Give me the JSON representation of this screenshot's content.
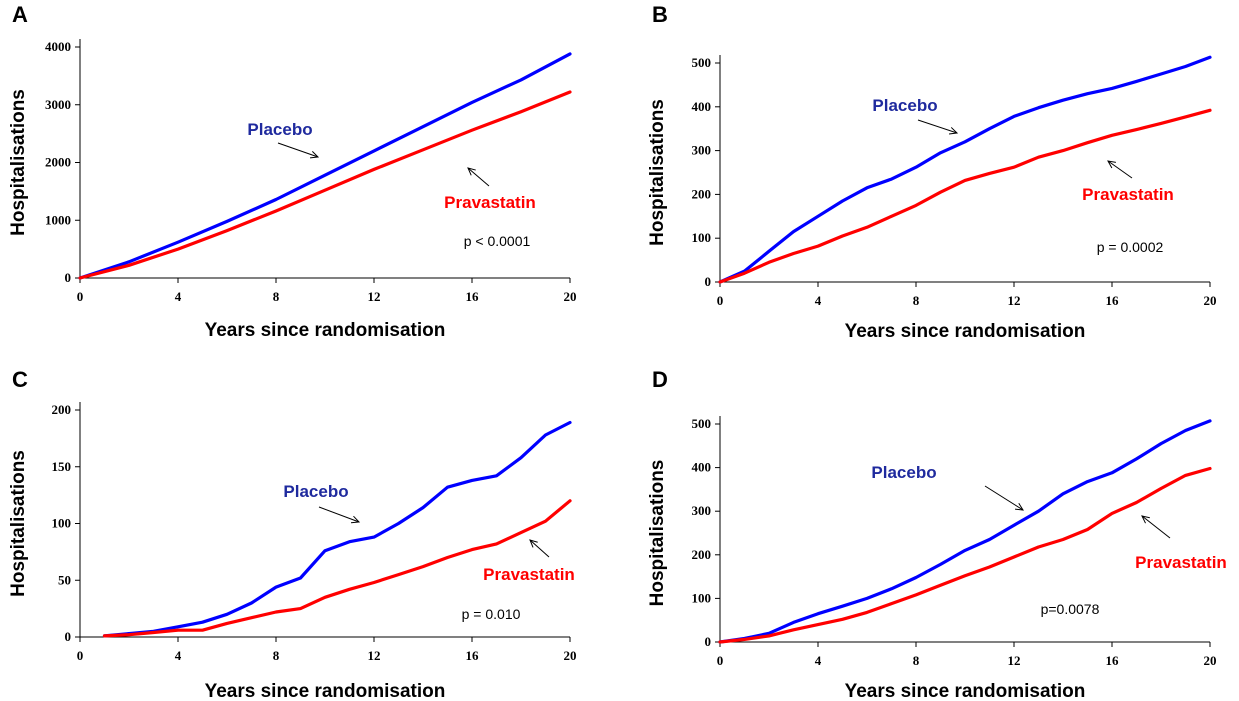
{
  "colors": {
    "placebo": "#0000ff",
    "pravastatin": "#ff0000",
    "placebo_label": "#1f2a9e",
    "pravastatin_label": "#ff0000"
  },
  "chart_data": [
    {
      "panel": "A",
      "type": "line",
      "xlabel": "Years since randomisation",
      "ylabel": "Hospitalisations",
      "xlim": [
        0,
        20
      ],
      "ylim": [
        0,
        4000
      ],
      "xticks": [
        0,
        4,
        8,
        12,
        16,
        20
      ],
      "yticks": [
        0,
        1000,
        2000,
        3000,
        4000
      ],
      "annotation": "p < 0.0001",
      "series": [
        {
          "name": "Placebo",
          "x": [
            0,
            2,
            4,
            6,
            8,
            10,
            12,
            14,
            16,
            18,
            20
          ],
          "y": [
            0,
            280,
            620,
            980,
            1360,
            1780,
            2200,
            2620,
            3040,
            3430,
            3880
          ]
        },
        {
          "name": "Pravastatin",
          "x": [
            0,
            2,
            4,
            6,
            8,
            10,
            12,
            14,
            16,
            18,
            20
          ],
          "y": [
            0,
            220,
            500,
            820,
            1160,
            1520,
            1880,
            2220,
            2560,
            2880,
            3220
          ]
        }
      ]
    },
    {
      "panel": "B",
      "type": "line",
      "xlabel": "Years since randomisation",
      "ylabel": "Hospitalisations",
      "xlim": [
        0,
        20
      ],
      "ylim": [
        0,
        500
      ],
      "xticks": [
        0,
        4,
        8,
        12,
        16,
        20
      ],
      "yticks": [
        0,
        100,
        200,
        300,
        400,
        500
      ],
      "annotation": "p = 0.0002",
      "series": [
        {
          "name": "Placebo",
          "x": [
            0,
            1,
            2,
            3,
            4,
            5,
            6,
            7,
            8,
            9,
            10,
            11,
            12,
            13,
            14,
            15,
            16,
            17,
            18,
            19,
            20
          ],
          "y": [
            0,
            25,
            70,
            115,
            150,
            185,
            215,
            235,
            262,
            295,
            320,
            350,
            378,
            398,
            415,
            430,
            442,
            458,
            475,
            492,
            513
          ]
        },
        {
          "name": "Pravastatin",
          "x": [
            0,
            1,
            2,
            3,
            4,
            5,
            6,
            7,
            8,
            9,
            10,
            11,
            12,
            13,
            14,
            15,
            16,
            17,
            18,
            19,
            20
          ],
          "y": [
            0,
            20,
            45,
            65,
            82,
            105,
            125,
            150,
            175,
            205,
            232,
            248,
            262,
            285,
            300,
            318,
            335,
            348,
            362,
            377,
            392
          ]
        }
      ]
    },
    {
      "panel": "C",
      "type": "line",
      "xlabel": "Years since randomisation",
      "ylabel": "Hospitalisations",
      "xlim": [
        0,
        20
      ],
      "ylim": [
        0,
        200
      ],
      "xticks": [
        0,
        4,
        8,
        12,
        16,
        20
      ],
      "yticks": [
        0,
        50,
        100,
        150,
        200
      ],
      "annotation": "p = 0.010",
      "series": [
        {
          "name": "Placebo",
          "x": [
            1,
            2,
            3,
            4,
            5,
            6,
            7,
            8,
            9,
            10,
            11,
            12,
            13,
            14,
            15,
            16,
            17,
            18,
            19,
            20
          ],
          "y": [
            1,
            3,
            5,
            9,
            13,
            20,
            30,
            44,
            52,
            76,
            84,
            88,
            100,
            114,
            132,
            138,
            142,
            158,
            178,
            189
          ]
        },
        {
          "name": "Pravastatin",
          "x": [
            1,
            2,
            3,
            4,
            5,
            6,
            7,
            8,
            9,
            10,
            11,
            12,
            13,
            14,
            15,
            16,
            17,
            18,
            19,
            20
          ],
          "y": [
            1,
            2,
            4,
            6,
            6,
            12,
            17,
            22,
            25,
            35,
            42,
            48,
            55,
            62,
            70,
            77,
            82,
            92,
            102,
            120
          ]
        }
      ]
    },
    {
      "panel": "D",
      "type": "line",
      "xlabel": "Years since randomisation",
      "ylabel": "Hospitalisations",
      "xlim": [
        0,
        20
      ],
      "ylim": [
        0,
        500
      ],
      "xticks": [
        0,
        4,
        8,
        12,
        16,
        20
      ],
      "yticks": [
        0,
        100,
        200,
        300,
        400,
        500
      ],
      "annotation": "p=0.0078",
      "series": [
        {
          "name": "Placebo",
          "x": [
            0,
            1,
            2,
            3,
            4,
            5,
            6,
            7,
            8,
            9,
            10,
            11,
            12,
            13,
            14,
            15,
            16,
            17,
            18,
            19,
            20
          ],
          "y": [
            0,
            8,
            20,
            45,
            65,
            82,
            100,
            122,
            148,
            178,
            210,
            235,
            268,
            300,
            340,
            368,
            388,
            420,
            455,
            485,
            507
          ]
        },
        {
          "name": "Pravastatin",
          "x": [
            0,
            1,
            2,
            3,
            4,
            5,
            6,
            7,
            8,
            9,
            10,
            11,
            12,
            13,
            14,
            15,
            16,
            17,
            18,
            19,
            20
          ],
          "y": [
            0,
            6,
            14,
            28,
            40,
            52,
            68,
            88,
            108,
            130,
            152,
            172,
            195,
            218,
            235,
            258,
            295,
            320,
            352,
            382,
            398
          ]
        }
      ]
    }
  ]
}
